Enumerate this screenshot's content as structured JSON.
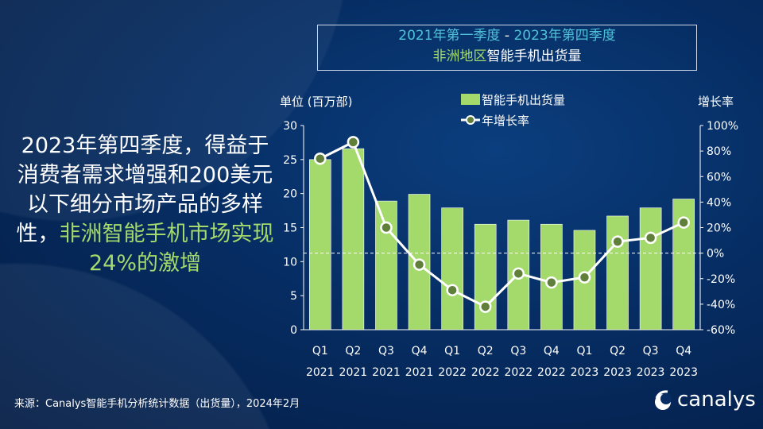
{
  "title": {
    "line1_a": "2021年第一季度",
    "line1_sep": " - ",
    "line1_b": "2023年第四季度",
    "line2_a": "非洲地区",
    "line2_b": "智能手机出货量"
  },
  "left_text": {
    "white": "2023年第四季度，得益于消费者需求增强和200美元以下细分市场产品的多样性，",
    "green": "非洲智能手机市场实现24%的激增"
  },
  "footer": "来源：Canalys智能手机分析统计数据（出货量），2024年2月",
  "logo": "canalys",
  "chart_data": {
    "type": "bar+line",
    "ylabel_left": "单位 (百万部)",
    "ylabel_right": "增长率",
    "ylim_left": [
      0,
      30
    ],
    "yticks_left": [
      "0",
      "5",
      "10",
      "15",
      "20",
      "25",
      "30"
    ],
    "ylim_right": [
      -60,
      100
    ],
    "yticks_right": [
      "-60%",
      "-40%",
      "-20%",
      "0%",
      "20%",
      "40%",
      "60%",
      "80%",
      "100%"
    ],
    "categories": [
      [
        "Q1",
        "2021"
      ],
      [
        "Q2",
        "2021"
      ],
      [
        "Q3",
        "2021"
      ],
      [
        "Q4",
        "2021"
      ],
      [
        "Q1",
        "2022"
      ],
      [
        "Q2",
        "2022"
      ],
      [
        "Q3",
        "2022"
      ],
      [
        "Q4",
        "2022"
      ],
      [
        "Q1",
        "2023"
      ],
      [
        "Q2",
        "2023"
      ],
      [
        "Q3",
        "2023"
      ],
      [
        "Q4",
        "2023"
      ]
    ],
    "series": [
      {
        "name": "智能手机出货量",
        "type": "bar",
        "axis": "left",
        "color": "#a4d96b",
        "values": [
          25.0,
          26.6,
          18.9,
          19.9,
          17.9,
          15.5,
          16.1,
          15.5,
          14.6,
          16.7,
          17.9,
          19.2
        ]
      },
      {
        "name": "年增长率",
        "type": "line",
        "axis": "right",
        "color": "#ffffff",
        "marker_color": "#5f7f3a",
        "values": [
          74,
          87,
          20,
          -9,
          -29,
          -42,
          -16,
          -23,
          -19,
          9,
          12,
          24
        ]
      }
    ],
    "legend": "top-center",
    "zero_line": "dashed"
  }
}
